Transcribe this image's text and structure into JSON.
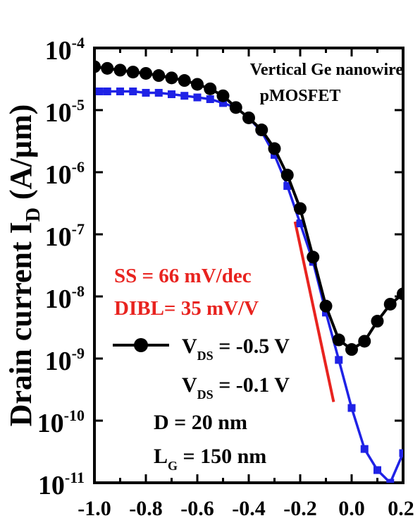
{
  "chart_data": {
    "type": "line",
    "title": "",
    "ylabel": "Drain current",
    "ylabel_symbol": "I",
    "ylabel_sub": "D",
    "ylabel_unit": "(A/µm)",
    "xlabel": "",
    "xlim": [
      -1.0,
      0.2
    ],
    "ylim_exp": [
      -11,
      -4
    ],
    "y_log": true,
    "grid": false,
    "x_ticks": [
      "-1.0",
      "-0.8",
      "-0.6",
      "-0.4",
      "-0.2",
      "0.0",
      "0.2"
    ],
    "y_ticks": [
      {
        "base": "10",
        "exp": "-4"
      },
      {
        "base": "10",
        "exp": "-5"
      },
      {
        "base": "10",
        "exp": "-6"
      },
      {
        "base": "10",
        "exp": "-7"
      },
      {
        "base": "10",
        "exp": "-8"
      },
      {
        "base": "10",
        "exp": "-9"
      },
      {
        "base": "10",
        "exp": "-10"
      },
      {
        "base": "10",
        "exp": "-11"
      }
    ],
    "annotations": {
      "device_line1": "Vertical Ge nanowire",
      "device_line2": "pMOSFET",
      "ss": "SS = 66 mV/dec",
      "dibl": "DIBL= 35 mV/V",
      "diameter": "D = 20 nm",
      "gate_length_prefix": "L",
      "gate_length_sub": "G",
      "gate_length_suffix": " = 150 nm"
    },
    "series": [
      {
        "label_prefix": "V",
        "label_sub": "DS",
        "label_suffix": " = -0.5 V",
        "color": "#000000",
        "marker": "circle",
        "x": [
          -1.0,
          -0.95,
          -0.9,
          -0.85,
          -0.8,
          -0.75,
          -0.7,
          -0.65,
          -0.6,
          -0.55,
          -0.5,
          -0.45,
          -0.4,
          -0.35,
          -0.3,
          -0.25,
          -0.2,
          -0.15,
          -0.1,
          -0.05,
          0.0,
          0.05,
          0.1,
          0.15,
          0.2
        ],
        "y": [
          5e-05,
          4.7e-05,
          4.4e-05,
          4.1e-05,
          3.9e-05,
          3.6e-05,
          3.3e-05,
          3e-05,
          2.6e-05,
          2.2e-05,
          1.7e-05,
          1.1e-05,
          7.5e-06,
          4.8e-06,
          2.4e-06,
          9e-07,
          2.6e-07,
          4.3e-08,
          7e-09,
          2e-09,
          1.4e-09,
          1.9e-09,
          4e-09,
          7.5e-09,
          1.1e-08
        ]
      },
      {
        "label_prefix": "V",
        "label_sub": "DS",
        "label_suffix": " = -0.1 V",
        "color": "#1f22e6",
        "marker": "square",
        "x": [
          -0.98,
          -0.95,
          -0.9,
          -0.85,
          -0.8,
          -0.75,
          -0.7,
          -0.65,
          -0.6,
          -0.55,
          -0.5,
          -0.45,
          -0.4,
          -0.35,
          -0.3,
          -0.25,
          -0.2,
          -0.15,
          -0.1,
          -0.05,
          0.0,
          0.05,
          0.1,
          0.15,
          0.2
        ],
        "y": [
          2e-05,
          2e-05,
          2e-05,
          2e-05,
          1.9e-05,
          1.9e-05,
          1.8e-05,
          1.7e-05,
          1.6e-05,
          1.5e-05,
          1.3e-05,
          1.1e-05,
          7.5e-06,
          4.5e-06,
          1.9e-06,
          6e-07,
          1.5e-07,
          3.6e-08,
          5.5e-09,
          9.5e-10,
          1.6e-10,
          3.5e-11,
          1.6e-11,
          1e-11,
          3e-11
        ]
      }
    ],
    "ss_line_color": "#e8231f",
    "ss_line": {
      "x": [
        -0.22,
        -0.07
      ],
      "y": [
        1.6e-07,
        2e-10
      ]
    }
  }
}
